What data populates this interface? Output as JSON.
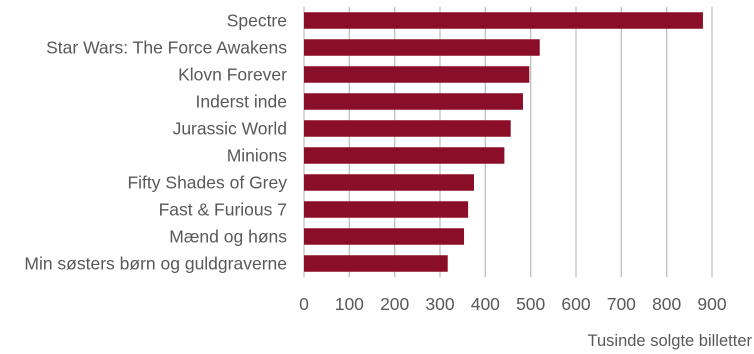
{
  "chart_data": {
    "type": "bar",
    "orientation": "horizontal",
    "categories": [
      "Spectre",
      "Star Wars: The Force Awakens",
      "Klovn Forever",
      "Inderst inde",
      "Jurassic World",
      "Minions",
      "Fifty Shades of Grey",
      "Fast & Furious 7",
      "Mænd og høns",
      "Min søsters børn og guldgraverne"
    ],
    "values": [
      880,
      520,
      497,
      483,
      456,
      442,
      375,
      362,
      353,
      317
    ],
    "xlabel": "Tusinde solgte billetter",
    "ylabel": "",
    "xlim": [
      0,
      900
    ],
    "ticks": [
      "0",
      "100",
      "200",
      "300",
      "400",
      "500",
      "600",
      "700",
      "800",
      "900"
    ],
    "grid": true,
    "bar_color": "#8B0E28",
    "grid_color": "#BFBFBF"
  }
}
